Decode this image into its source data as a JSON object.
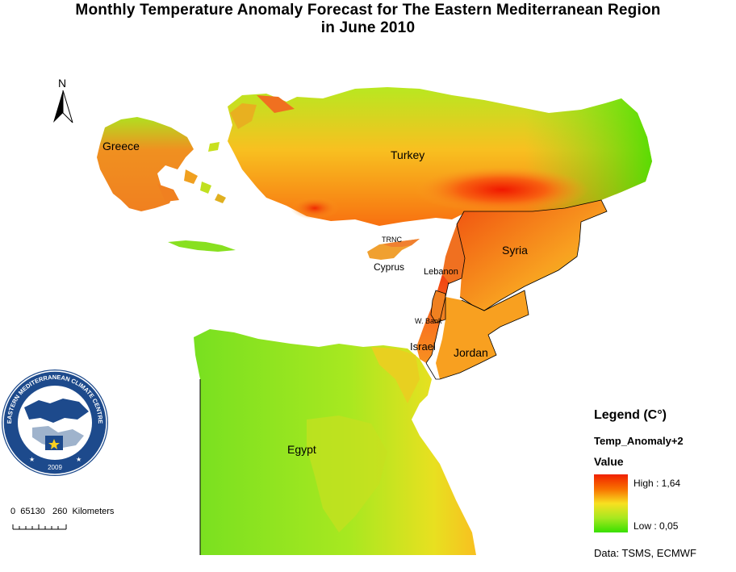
{
  "title": {
    "line1": "Monthly Temperature Anomaly Forecast for  The Eastern Mediterranean Region",
    "line2": "in June 2010"
  },
  "north_arrow": {
    "label": "N"
  },
  "regions": {
    "greece": "Greece",
    "turkey": "Turkey",
    "trnc": "TRNC",
    "cyprus": "Cyprus",
    "syria": "Syria",
    "lebanon": "Lebanon",
    "west_bank": "W. Bank",
    "israel": "Israel",
    "jordan": "Jordan",
    "egypt": "Egypt"
  },
  "legend": {
    "title": "Legend (C°)",
    "field": "Temp_Anomaly+2",
    "value_label": "Value",
    "high": "High : 1,64",
    "low": "Low : 0,05",
    "color_high": "#f02000",
    "color_mid": "#f8e020",
    "color_low": "#38e000"
  },
  "scale_bar": {
    "text": "0  65130   260  Kilometers"
  },
  "source": "Data:  TSMS, ECMWF",
  "logo": {
    "arc_text": "EASTERN MEDITERRANEAN CLIMATE CENTRE",
    "year": "2009",
    "color": "#1d4a8c"
  }
}
